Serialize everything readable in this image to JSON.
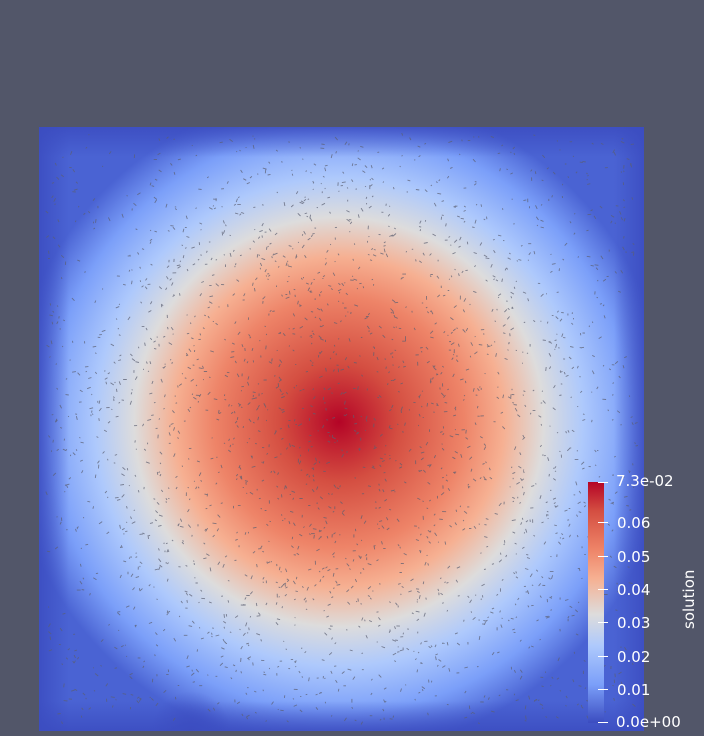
{
  "colorbar": {
    "title": "solution",
    "max_label": "7.3e-02",
    "min_label": "0.0e+00",
    "tick_labels": [
      "0.06",
      "0.05",
      "0.04",
      "0.03",
      "0.02",
      "0.01"
    ],
    "range": [
      0.0,
      0.073
    ],
    "colormap": [
      "#3b4cc0",
      "#7b9ff9",
      "#aec9fc",
      "#dddcdc",
      "#f6b092",
      "#ee8468",
      "#d44e41",
      "#b40426"
    ]
  },
  "colors": {
    "background": "#525669",
    "mesh_edges": "#5b5f72"
  }
}
